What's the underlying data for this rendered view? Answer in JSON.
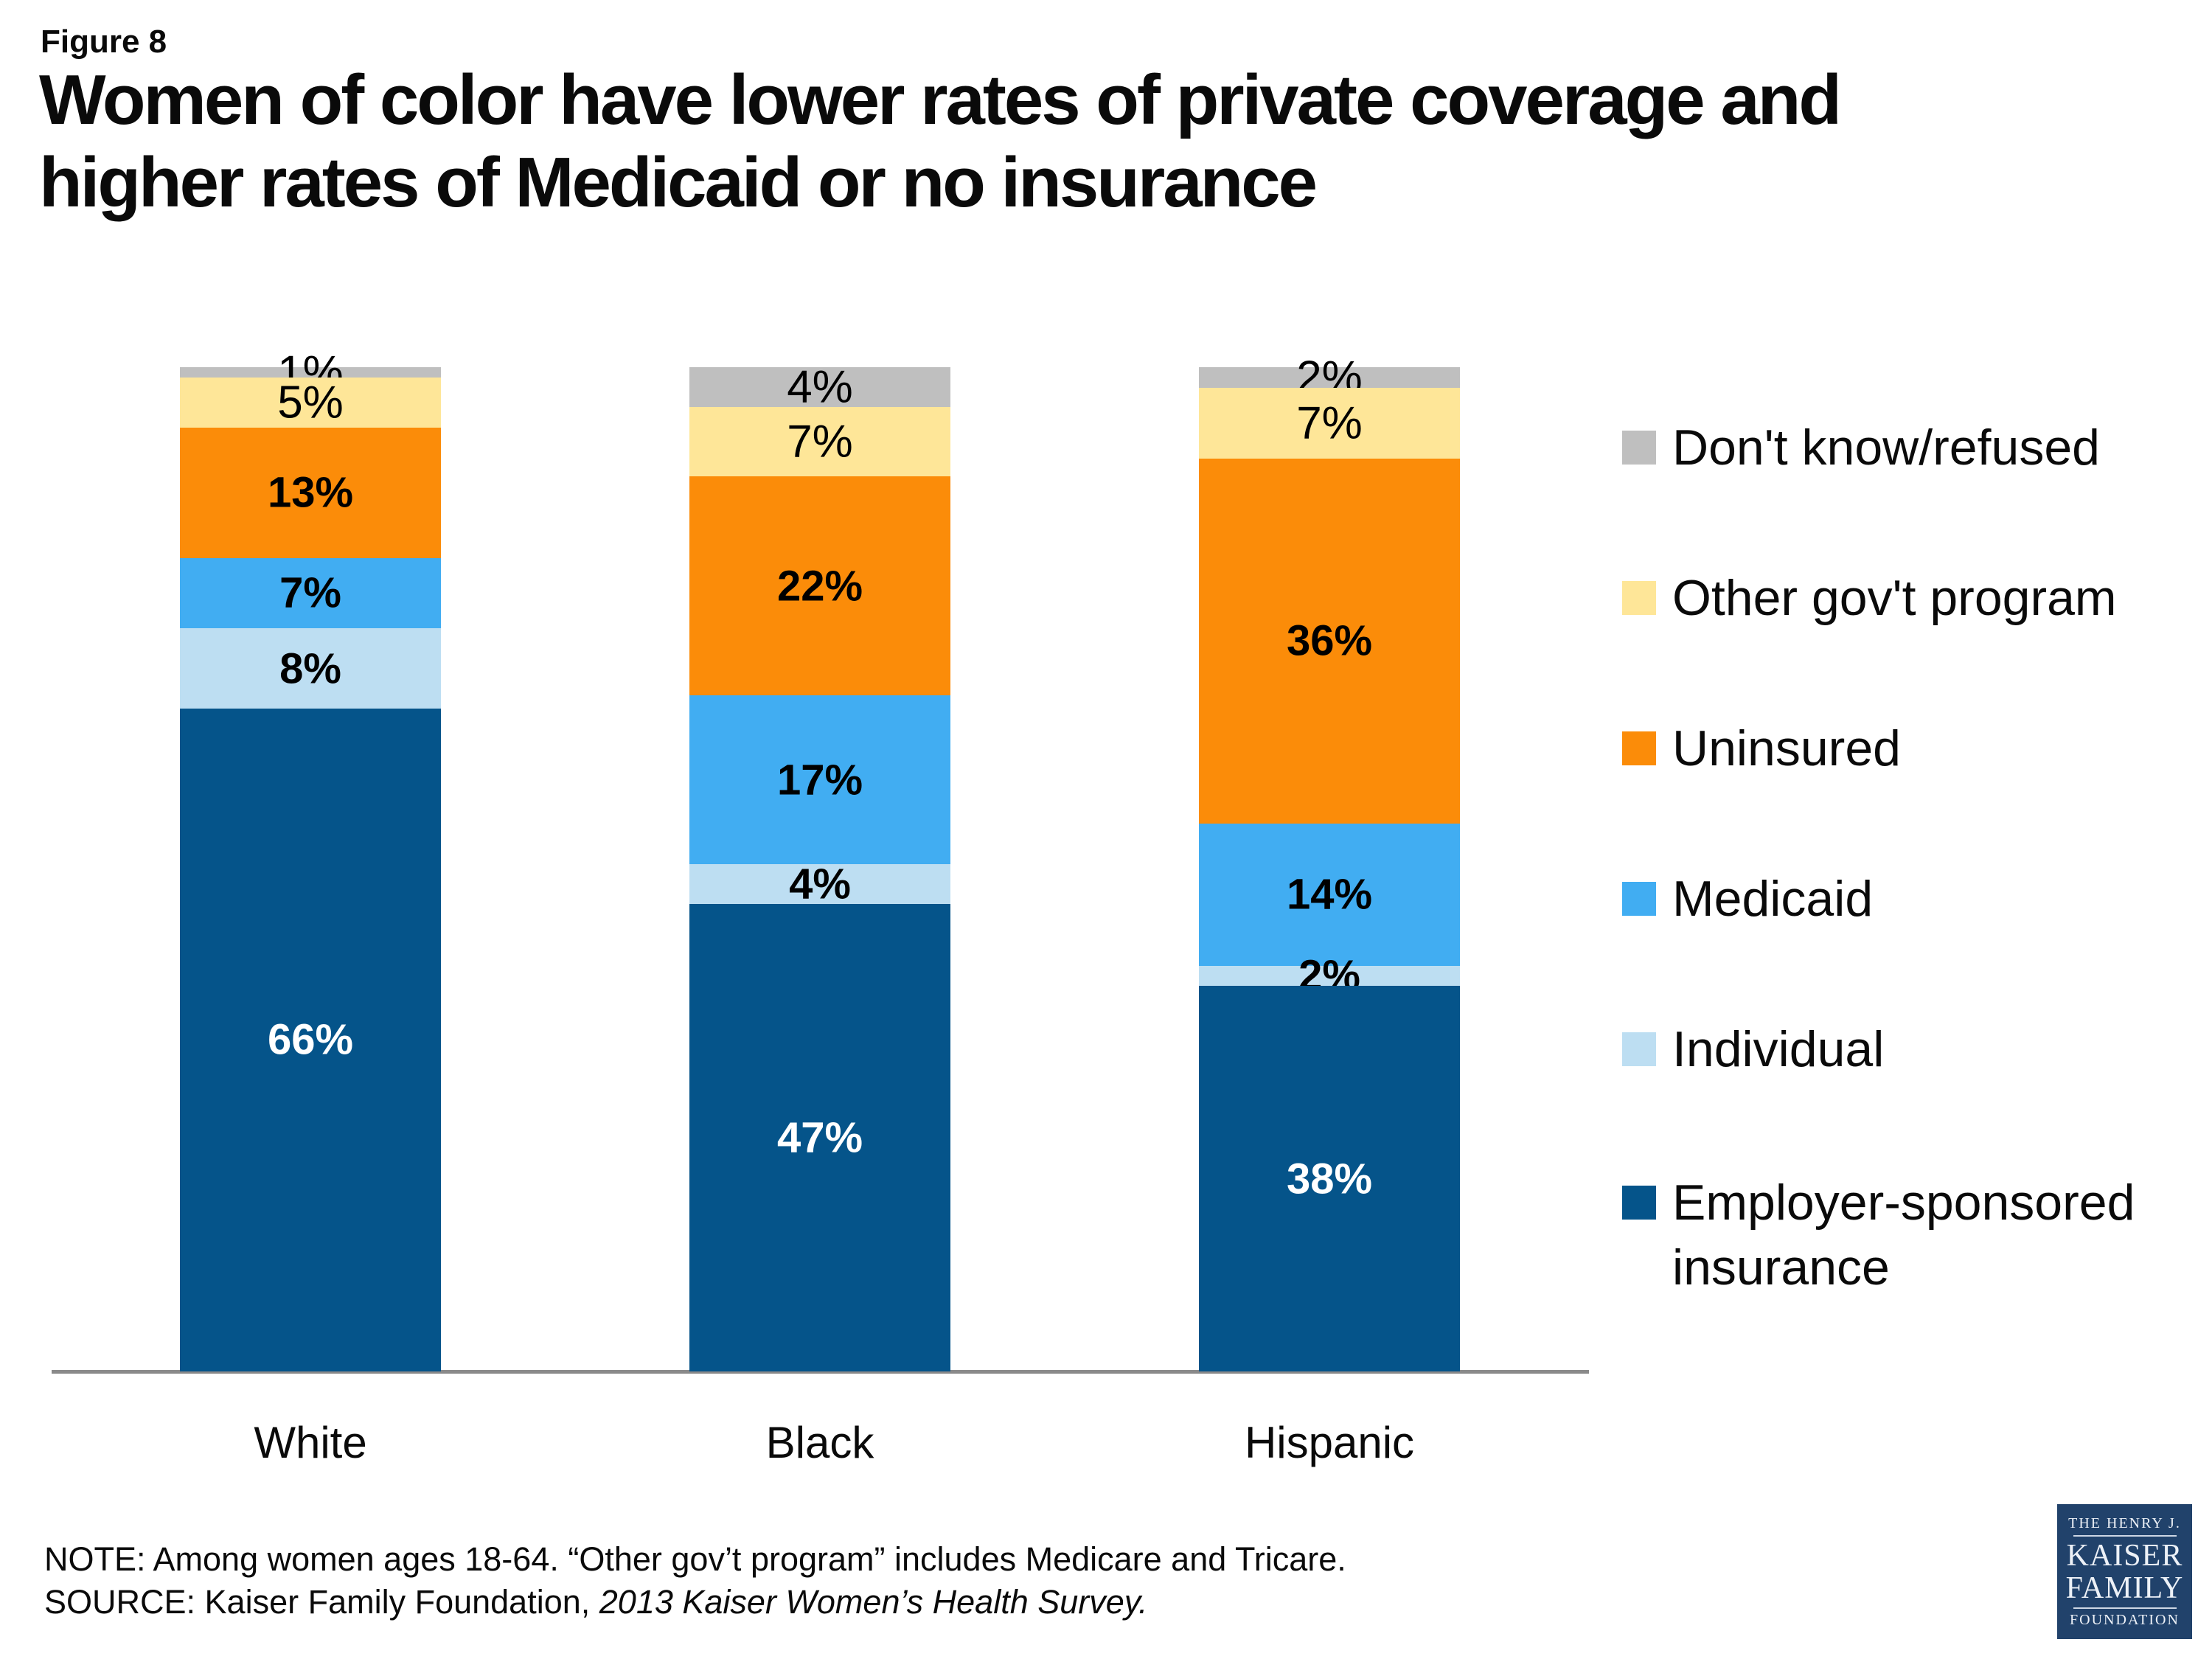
{
  "figure_label": "Figure 8",
  "title": {
    "line1": "Women of color have lower rates of private coverage and",
    "line2": "higher rates of Medicaid or no insurance"
  },
  "chart_data": {
    "type": "bar",
    "stacked": true,
    "categories": [
      "White",
      "Black",
      "Hispanic"
    ],
    "series": [
      {
        "name": "Employer-sponsored insurance",
        "color": "#05548a",
        "values": [
          66,
          47,
          38
        ],
        "label_style": "bold-white"
      },
      {
        "name": "Individual",
        "color": "#bddef2",
        "values": [
          8,
          4,
          2
        ],
        "label_style": "bold-black"
      },
      {
        "name": "Medicaid",
        "color": "#41adf2",
        "values": [
          7,
          17,
          14
        ],
        "label_style": "bold-black"
      },
      {
        "name": "Uninsured",
        "color": "#fb8c09",
        "values": [
          13,
          22,
          36
        ],
        "label_style": "bold-black"
      },
      {
        "name": "Other gov't program",
        "color": "#fee698",
        "values": [
          5,
          7,
          7
        ],
        "label_style": "regular-black"
      },
      {
        "name": "Don't know/refused",
        "color": "#bfbfbf",
        "values": [
          1,
          4,
          2
        ],
        "label_style": "regular-black"
      }
    ],
    "value_suffix": "%",
    "ylim": [
      0,
      100
    ],
    "grid": false,
    "legend_position": "right",
    "axis_color": "#8a8a8a"
  },
  "note": "NOTE: Among women ages 18-64. “Other gov’t program” includes Medicare and Tricare.",
  "source_prefix": "SOURCE: Kaiser Family Foundation, ",
  "source_italic": "2013 Kaiser Women’s Health Survey.",
  "logo": {
    "line1": "THE HENRY J.",
    "line2": "KAISER",
    "line3": "FAMILY",
    "line4": "FOUNDATION"
  }
}
